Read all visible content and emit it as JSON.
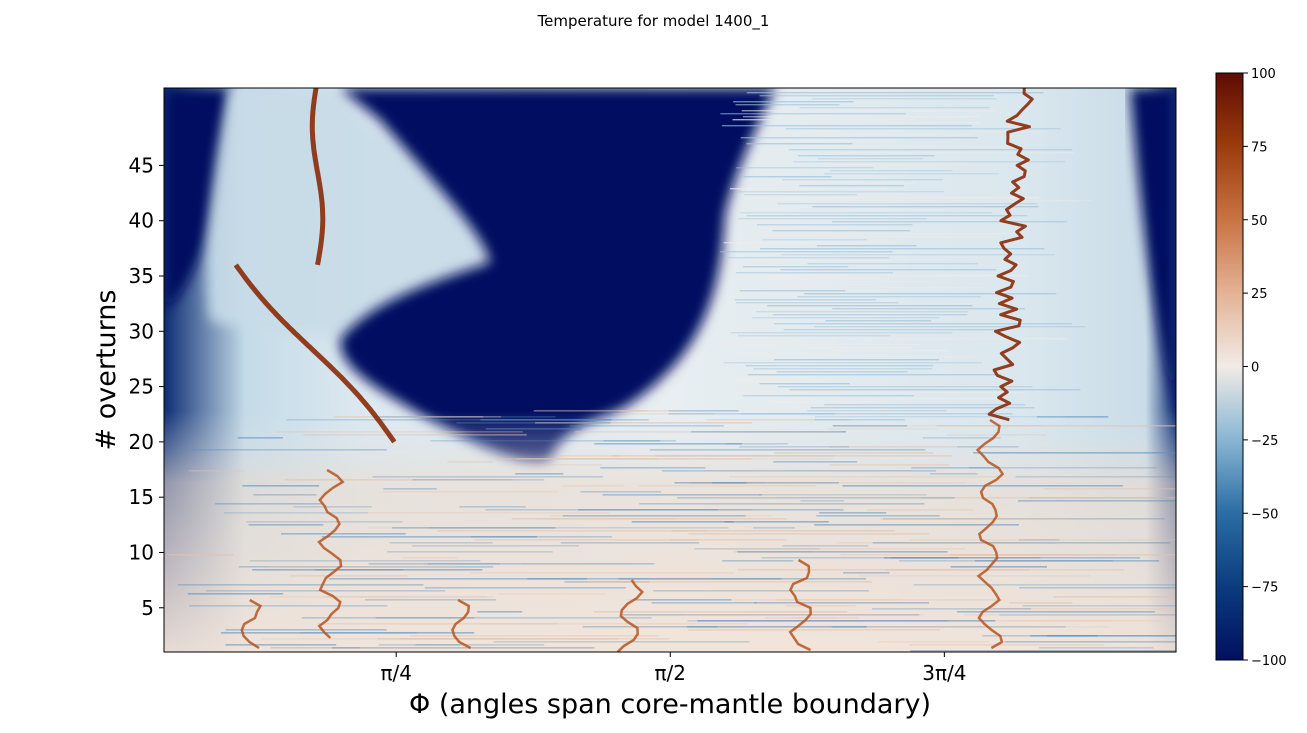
{
  "title": "Temperature for model 1400_1",
  "chart_data": {
    "type": "heatmap",
    "title": "Temperature for model 1400_1",
    "xlabel": "Φ (angles span core-mantle boundary)",
    "ylabel": "# overturns",
    "x_ticks": [
      {
        "value": 0.785398,
        "label": "π/4"
      },
      {
        "value": 1.570796,
        "label": "π/2"
      },
      {
        "value": 2.356194,
        "label": "3π/4"
      }
    ],
    "xlim": [
      0.12,
      3.02
    ],
    "y_ticks": [
      5,
      10,
      15,
      20,
      25,
      30,
      35,
      40,
      45
    ],
    "ylim": [
      1,
      52
    ],
    "colorbar": {
      "ticks": [
        100,
        75,
        50,
        25,
        0,
        -25,
        -50,
        -75,
        -100
      ],
      "tick_labels": [
        "100",
        "75",
        "50",
        "25",
        "0",
        "−25",
        "−50",
        "−75",
        "−100"
      ],
      "range": [
        -100,
        100
      ],
      "colormap": "diverging blue-white-red (RdBu_r-like)",
      "colors": {
        "min": "#021060",
        "mid": "#f1ebe6",
        "max": "#5e0b05"
      }
    },
    "features": [
      {
        "name": "upper-left plume path",
        "y": [
          36,
          52
        ],
        "x": [
          0.56,
          0.56
        ]
      },
      {
        "name": "lower-left plume path",
        "y": [
          20,
          36
        ],
        "x": [
          0.78,
          0.33
        ]
      },
      {
        "name": "right plume path",
        "y": [
          22,
          52
        ],
        "x": [
          2.52,
          2.58
        ]
      },
      {
        "name": "cold central region",
        "y": [
          19,
          52
        ],
        "x": [
          0.6,
          2.0
        ],
        "value": -100
      }
    ]
  }
}
